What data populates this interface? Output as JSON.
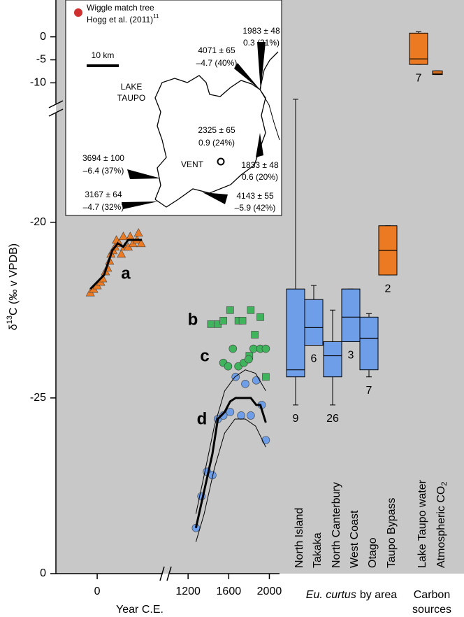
{
  "chart_data": {
    "type": "scatter",
    "ylabel_parts": [
      "δ",
      "13",
      "C (‰ v VPDB)"
    ],
    "xlabel": "Year C.E.",
    "box_group_label": [
      "Eu. curtus",
      "by area"
    ],
    "carbon_label": [
      "Carbon",
      "sources"
    ],
    "xlim": [
      -390,
      2100
    ],
    "xbreak": [
      620,
      1020
    ],
    "xticks": [
      0,
      1200,
      1600,
      2000
    ],
    "ylim": [
      -30,
      -16.9
    ],
    "yticks": [
      {
        "value": -30,
        "label": "0"
      },
      -25,
      -20
    ],
    "y2lim": [
      -14.5,
      8
    ],
    "y2ticks": [
      0,
      -5,
      -10
    ],
    "series": [
      {
        "name": "a",
        "type": "scatter",
        "marker": "triangle",
        "color": "#ec7a22",
        "x": [
          -65,
          -33,
          0,
          33,
          52,
          78,
          98,
          117,
          130,
          150,
          169,
          182,
          208,
          228,
          247,
          260,
          293,
          312,
          338,
          377,
          390,
          416
        ],
        "values": [
          -22.0,
          -21.9,
          -21.8,
          -21.7,
          -21.6,
          -21.4,
          -21.3,
          -21.1,
          -20.9,
          -20.8,
          -20.7,
          -20.5,
          -20.6,
          -20.9,
          -20.4,
          -20.7,
          -20.7,
          -20.4,
          -20.6,
          -20.5,
          -20.3,
          -20.6
        ]
      },
      {
        "type": "line",
        "color": "#000000",
        "line_width": 3,
        "x": [
          -65,
          65,
          98,
          143,
          195,
          247,
          293,
          423
        ],
        "values": [
          -21.9,
          -21.5,
          -21.2,
          -20.8,
          -20.6,
          -20.7,
          -20.5,
          -20.5
        ]
      },
      {
        "name": "b",
        "type": "scatter",
        "marker": "square",
        "color": "#3fb45c",
        "x": [
          1425,
          1493,
          1547,
          1614,
          1695,
          1736,
          1817,
          1911,
          1857,
          1803,
          1965
        ],
        "values": [
          -22.9,
          -22.9,
          -22.8,
          -22.5,
          -22.8,
          -22.8,
          -22.5,
          -22.7,
          -23.2,
          -23.8,
          -24.4
        ]
      },
      {
        "name": "c",
        "type": "scatter",
        "marker": "circle",
        "color": "#3fb45c",
        "x": [
          1547,
          1594,
          1641,
          1695,
          1749,
          1796,
          1844,
          1911,
          1965
        ],
        "values": [
          -24.0,
          -24.1,
          -23.6,
          -24.1,
          -24.0,
          -23.9,
          -23.6,
          -23.6,
          -23.6
        ]
      },
      {
        "name": "d",
        "type": "scatter",
        "marker": "circle",
        "color": "#6e9ee8",
        "x": [
          1277,
          1331,
          1385,
          1439,
          1493,
          1547,
          1614,
          1668,
          1722,
          1763,
          1817,
          1871,
          1925,
          1965
        ],
        "values": [
          -28.7,
          -27.8,
          -27.1,
          -27.2,
          -25.6,
          -25.5,
          -25.4,
          -24.4,
          -25.5,
          -24.6,
          -25.5,
          -24.5,
          -25.2,
          -26.2
        ]
      },
      {
        "type": "line",
        "color": "#000000",
        "line_width": 3,
        "x": [
          1277,
          1331,
          1385,
          1439,
          1493,
          1560,
          1614,
          1668,
          1722,
          1763,
          1817,
          1871,
          1911,
          1965
        ],
        "values": [
          -28.7,
          -28.0,
          -27.3,
          -26.6,
          -25.6,
          -25.4,
          -25.1,
          -25.0,
          -25.0,
          -25.0,
          -25.0,
          -25.2,
          -25.2,
          -25.7
        ]
      },
      {
        "type": "line",
        "color": "#000000",
        "line_width": 1,
        "x": [
          1277,
          1358,
          1459,
          1560,
          1661,
          1763,
          1864,
          1965
        ],
        "values": [
          -28.3,
          -27.2,
          -25.8,
          -24.8,
          -24.4,
          -24.2,
          -24.3,
          -24.8
        ]
      },
      {
        "type": "line",
        "color": "#000000",
        "line_width": 1,
        "x": [
          1277,
          1358,
          1459,
          1560,
          1661,
          1763,
          1864,
          1965
        ],
        "values": [
          -29.1,
          -28.3,
          -27.0,
          -26.0,
          -25.6,
          -25.6,
          -25.8,
          -26.4
        ]
      }
    ],
    "boxes": [
      {
        "name": "North Island",
        "color": "#6e9ee8",
        "low": -25.2,
        "q1": -24.4,
        "median": -24.2,
        "q3": -21.9,
        "high": -16.5,
        "n": 9
      },
      {
        "name": "Takaka",
        "color": "#6e9ee8",
        "low": -23.5,
        "q1": -23.5,
        "median": -23.0,
        "q3": -22.2,
        "high": -21.8,
        "n": 6
      },
      {
        "name": "North Canterbury",
        "color": "#6e9ee8",
        "low": -25.2,
        "q1": -24.4,
        "median": -23.8,
        "q3": -23.4,
        "high": -22.5,
        "n": 26
      },
      {
        "name": "West Coast",
        "color": "#6e9ee8",
        "low": -23.4,
        "q1": -23.4,
        "median": -22.7,
        "q3": -21.9,
        "high": -21.9,
        "n": 3
      },
      {
        "name": "Otago",
        "color": "#6e9ee8",
        "low": -24.4,
        "q1": -24.2,
        "median": -23.3,
        "q3": -22.7,
        "high": -22.6,
        "n": 7
      },
      {
        "name": "Taupo Bypass",
        "color": "#ec7a22",
        "low": -21.5,
        "q1": -21.5,
        "median": -20.8,
        "q3": -20.1,
        "high": -20.1,
        "n": 2
      },
      {
        "name": "Lake Taupo water",
        "color": "#ec7a22",
        "axis": "y2",
        "low": -6.0,
        "q1": -6.0,
        "median": -4.8,
        "q3": 0.8,
        "high": 1.1,
        "n": 7
      },
      {
        "name": "Atmospheric CO",
        "name_sub": "2",
        "color": "#ec7a22",
        "axis": "y2",
        "low": -8.2,
        "q1": -8.2,
        "median": -7.9,
        "q3": -7.4,
        "high": -7.4
      }
    ]
  },
  "inset": {
    "legend_title": "Wiggle match tree",
    "legend_ref": "Hogg et al. (2011)",
    "legend_sup": "11",
    "scale": "10 km",
    "lake": [
      "LAKE",
      "TAUPO"
    ],
    "vent": "VENT",
    "samples": [
      {
        "age": "1983 ± 48",
        "d13c": "0.3 (21%)"
      },
      {
        "age": "4071 ± 65",
        "d13c": "–4.7 (40%)"
      },
      {
        "age": "2325 ± 65",
        "d13c": "0.9 (24%)"
      },
      {
        "age": "1833 ± 48",
        "d13c": "0.6 (20%)"
      },
      {
        "age": "3694 ± 100",
        "d13c": "–6.4 (37%)"
      },
      {
        "age": "3167 ± 64",
        "d13c": "–4.7 (32%)"
      },
      {
        "age": "4143 ± 55",
        "d13c": "–5.9 (42%)"
      }
    ]
  }
}
